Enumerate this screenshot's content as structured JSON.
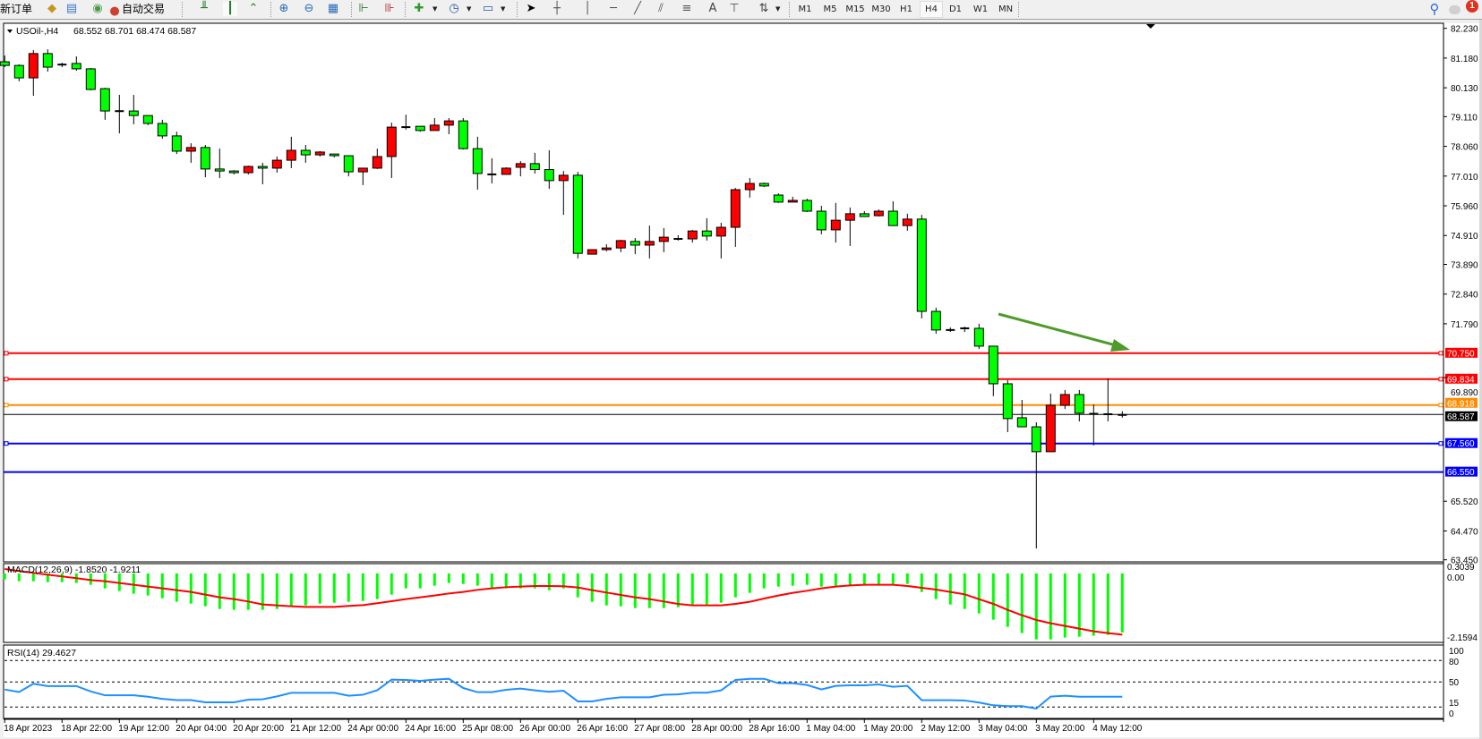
{
  "toolbar": {
    "new_order_label": "新订单",
    "auto_trading_label": "自动交易",
    "timeframes": [
      "M1",
      "M5",
      "M15",
      "M30",
      "H1",
      "H4",
      "D1",
      "W1",
      "MN"
    ],
    "active_timeframe": "H4",
    "text_tool_label": "A",
    "notification_count": "1",
    "icons": [
      "new-order-icon",
      "market-watch-icon",
      "navigator-icon",
      "signals-icon",
      "auto-trading-icon",
      "bar-chart-icon",
      "candlestick-icon",
      "line-chart-icon",
      "zoom-in-icon",
      "zoom-out-icon",
      "tile-windows-icon",
      "auto-scroll-icon",
      "chart-shift-icon",
      "indicators-icon",
      "periods-icon",
      "templates-icon",
      "cursor-icon",
      "crosshair-icon",
      "vertical-line-icon",
      "horizontal-line-icon",
      "trendline-icon",
      "equidistant-channel-icon",
      "fibonacci-icon",
      "text-icon",
      "text-label-icon",
      "arrows-icon",
      "search-icon",
      "notifications-icon"
    ]
  },
  "chart_header": {
    "symbol_timeframe": "USOil-,H4",
    "ohlc": "68.552 68.701 68.474 68.587"
  },
  "chart_data": [
    {
      "type": "candlestick",
      "symbol": "USOil-",
      "timeframe": "H4",
      "bullish_color": "#ff0000",
      "bearish_color": "#00ff00",
      "ylim": [
        63.45,
        82.23
      ],
      "y_ticks": [
        "82.230",
        "81.180",
        "80.130",
        "79.110",
        "78.060",
        "77.010",
        "75.960",
        "74.910",
        "73.890",
        "72.840",
        "71.790",
        "69.890",
        "65.520",
        "64.470",
        "63.450"
      ],
      "x_tick_labels": [
        "18 Apr 2023",
        "18 Apr 22:00",
        "19 Apr 12:00",
        "20 Apr 04:00",
        "20 Apr 20:00",
        "21 Apr 12:00",
        "24 Apr 00:00",
        "24 Apr 16:00",
        "25 Apr 08:00",
        "26 Apr 00:00",
        "26 Apr 16:00",
        "27 Apr 08:00",
        "28 Apr 00:00",
        "28 Apr 16:00",
        "1 May 04:00",
        "1 May 20:00",
        "2 May 12:00",
        "3 May 04:00",
        "3 May 20:00",
        "4 May 12:00"
      ],
      "ohlc_columns": [
        "open",
        "high",
        "low",
        "close"
      ],
      "candles": [
        [
          81.05,
          81.27,
          80.86,
          80.92
        ],
        [
          80.92,
          80.96,
          80.36,
          80.48
        ],
        [
          80.48,
          81.46,
          79.85,
          81.34
        ],
        [
          81.34,
          81.49,
          80.7,
          80.86
        ],
        [
          80.96,
          81.02,
          80.86,
          80.94
        ],
        [
          80.99,
          81.24,
          80.73,
          80.8
        ],
        [
          80.8,
          80.83,
          80.04,
          80.07
        ],
        [
          80.1,
          80.13,
          79.0,
          79.31
        ],
        [
          79.31,
          79.88,
          78.52,
          79.3
        ],
        [
          79.31,
          79.88,
          78.84,
          79.15
        ],
        [
          79.15,
          79.15,
          78.81,
          78.87
        ],
        [
          78.87,
          79.0,
          78.33,
          78.43
        ],
        [
          78.43,
          78.58,
          77.79,
          77.89
        ],
        [
          77.89,
          78.17,
          77.48,
          78.02
        ],
        [
          78.02,
          78.11,
          76.97,
          77.26
        ],
        [
          77.26,
          77.98,
          76.94,
          77.19
        ],
        [
          77.19,
          77.22,
          77.07,
          77.13
        ],
        [
          77.13,
          77.38,
          77.07,
          77.35
        ],
        [
          77.35,
          77.48,
          76.72,
          77.29
        ],
        [
          77.29,
          77.7,
          77.13,
          77.57
        ],
        [
          77.57,
          78.4,
          77.29,
          77.92
        ],
        [
          77.92,
          78.11,
          77.48,
          77.76
        ],
        [
          77.76,
          77.89,
          77.7,
          77.86
        ],
        [
          77.79,
          77.79,
          77.67,
          77.73
        ],
        [
          77.73,
          77.73,
          77.0,
          77.16
        ],
        [
          77.16,
          77.29,
          76.69,
          77.29
        ],
        [
          77.29,
          77.98,
          77.26,
          77.7
        ],
        [
          77.7,
          78.9,
          76.94,
          78.74
        ],
        [
          78.74,
          79.18,
          78.65,
          78.74
        ],
        [
          78.77,
          78.77,
          78.58,
          78.62
        ],
        [
          78.62,
          79.06,
          78.62,
          78.81
        ],
        [
          78.81,
          79.06,
          78.49,
          78.96
        ],
        [
          78.96,
          79.06,
          77.95,
          77.98
        ],
        [
          77.98,
          78.4,
          76.53,
          77.1
        ],
        [
          77.07,
          77.64,
          76.75,
          77.07
        ],
        [
          77.07,
          77.32,
          77.07,
          77.29
        ],
        [
          77.32,
          77.54,
          77.0,
          77.45
        ],
        [
          77.45,
          77.83,
          77.1,
          77.24
        ],
        [
          77.24,
          77.92,
          76.56,
          76.85
        ],
        [
          76.85,
          77.19,
          75.64,
          77.04
        ],
        [
          77.04,
          77.16,
          74.1,
          74.28
        ],
        [
          74.25,
          74.41,
          74.25,
          74.41
        ],
        [
          74.41,
          74.6,
          74.35,
          74.47
        ],
        [
          74.47,
          74.76,
          74.32,
          74.73
        ],
        [
          74.7,
          74.82,
          74.25,
          74.57
        ],
        [
          74.57,
          75.26,
          74.1,
          74.7
        ],
        [
          74.7,
          75.17,
          74.32,
          74.85
        ],
        [
          74.79,
          74.92,
          74.73,
          74.79
        ],
        [
          74.79,
          75.11,
          74.66,
          75.07
        ],
        [
          75.07,
          75.52,
          74.73,
          74.89
        ],
        [
          74.89,
          75.36,
          74.1,
          75.2
        ],
        [
          75.2,
          76.59,
          74.51,
          76.53
        ],
        [
          76.53,
          76.94,
          76.25,
          76.75
        ],
        [
          76.75,
          76.78,
          76.62,
          76.66
        ],
        [
          76.34,
          76.4,
          76.06,
          76.09
        ],
        [
          76.09,
          76.28,
          76.09,
          76.15
        ],
        [
          76.15,
          76.21,
          75.74,
          75.77
        ],
        [
          75.77,
          75.96,
          74.95,
          75.11
        ],
        [
          75.11,
          76.06,
          74.66,
          75.45
        ],
        [
          75.45,
          75.9,
          74.54,
          75.68
        ],
        [
          75.68,
          75.77,
          75.58,
          75.58
        ],
        [
          75.61,
          75.83,
          75.58,
          75.77
        ],
        [
          75.77,
          76.12,
          75.26,
          75.26
        ],
        [
          75.26,
          75.68,
          75.08,
          75.49
        ],
        [
          75.49,
          75.64,
          71.98,
          72.23
        ],
        [
          72.23,
          72.36,
          71.44,
          71.57
        ],
        [
          71.58,
          71.66,
          71.5,
          71.56
        ],
        [
          71.63,
          71.69,
          71.5,
          71.63
        ],
        [
          71.63,
          71.79,
          70.9,
          71.0
        ],
        [
          71.0,
          71.0,
          69.23,
          69.67
        ],
        [
          69.67,
          69.8,
          67.96,
          68.44
        ],
        [
          68.47,
          69.1,
          68.15,
          68.15
        ],
        [
          68.15,
          68.31,
          63.85,
          67.27
        ],
        [
          67.27,
          69.32,
          67.27,
          68.91
        ],
        [
          68.91,
          69.45,
          68.78,
          69.29
        ],
        [
          69.29,
          69.45,
          68.34,
          68.63
        ],
        [
          68.62,
          68.94,
          67.49,
          68.6
        ],
        [
          68.6,
          69.86,
          68.34,
          68.59
        ],
        [
          68.552,
          68.701,
          68.474,
          68.587
        ]
      ],
      "current_price": {
        "label": "68.587",
        "value": 68.587,
        "color": "#000000"
      },
      "levels": [
        {
          "label": "70.750",
          "value": 70.75,
          "color": "#ff0000",
          "marker": true
        },
        {
          "label": "69.834",
          "value": 69.834,
          "color": "#ff0000",
          "marker": true
        },
        {
          "label": "68.918",
          "value": 68.918,
          "color": "#ff8c00",
          "marker": true
        },
        {
          "label": "67.560",
          "value": 67.56,
          "color": "#0000ff",
          "marker": true
        },
        {
          "label": "66.550",
          "value": 66.55,
          "color": "#0000ff",
          "marker": false
        }
      ],
      "annotation_arrow": {
        "color": "#4e9a2a",
        "direction": "down-right"
      }
    },
    {
      "type": "bar+line",
      "title": "MACD(12,26,9) -1.8520 -1.9211",
      "ylim": [
        -2.1594,
        0.3039
      ],
      "y_ticks": [
        "0.3039",
        "0.00",
        "-2.1594"
      ],
      "histogram_color": "#00ff00",
      "signal_color": "#ff0000",
      "histogram": [
        -0.213,
        -0.268,
        -0.268,
        -0.295,
        -0.295,
        -0.323,
        -0.378,
        -0.489,
        -0.572,
        -0.655,
        -0.71,
        -0.794,
        -0.904,
        -0.96,
        -1.043,
        -1.126,
        -1.153,
        -1.153,
        -1.153,
        -1.126,
        -1.043,
        -1.015,
        -0.96,
        -0.932,
        -0.904,
        -0.877,
        -0.821,
        -0.683,
        -0.489,
        -0.489,
        -0.406,
        -0.323,
        -0.351,
        -0.406,
        -0.489,
        -0.489,
        -0.489,
        -0.489,
        -0.545,
        -0.489,
        -0.766,
        -0.904,
        -1.015,
        -1.043,
        -1.098,
        -1.098,
        -1.098,
        -1.07,
        -0.988,
        -0.988,
        -0.932,
        -0.766,
        -0.627,
        -0.489,
        -0.434,
        -0.406,
        -0.378,
        -0.434,
        -0.406,
        -0.406,
        -0.378,
        -0.351,
        -0.351,
        -0.351,
        -0.6,
        -0.821,
        -0.988,
        -1.126,
        -1.264,
        -1.458,
        -1.679,
        -1.873,
        -2.067,
        -2.067,
        -2.012,
        -1.984,
        -1.956,
        -1.928,
        -1.852
      ],
      "signal": [
        0.111,
        0.046,
        -0.009,
        -0.065,
        -0.12,
        -0.175,
        -0.231,
        -0.268,
        -0.323,
        -0.378,
        -0.434,
        -0.489,
        -0.544,
        -0.6,
        -0.683,
        -0.766,
        -0.821,
        -0.895,
        -0.987,
        -1.015,
        -1.042,
        -1.061,
        -1.061,
        -1.061,
        -1.033,
        -1.006,
        -0.95,
        -0.886,
        -0.821,
        -0.766,
        -0.71,
        -0.646,
        -0.6,
        -0.535,
        -0.489,
        -0.452,
        -0.434,
        -0.415,
        -0.415,
        -0.424,
        -0.461,
        -0.544,
        -0.618,
        -0.692,
        -0.766,
        -0.821,
        -0.895,
        -0.969,
        -1.015,
        -1.015,
        -1.015,
        -0.969,
        -0.904,
        -0.803,
        -0.71,
        -0.627,
        -0.563,
        -0.489,
        -0.434,
        -0.397,
        -0.378,
        -0.378,
        -0.378,
        -0.415,
        -0.47,
        -0.526,
        -0.6,
        -0.673,
        -0.821,
        -0.969,
        -1.153,
        -1.319,
        -1.467,
        -1.568,
        -1.651,
        -1.734,
        -1.817,
        -1.873,
        -1.921
      ]
    },
    {
      "type": "line",
      "title": "RSI(14) 29.4627",
      "ylim": [
        0,
        100
      ],
      "y_ticks": [
        "100",
        "80",
        "50",
        "15",
        "0"
      ],
      "levels": [
        80,
        50,
        15
      ],
      "line_color": "#1e90ff",
      "values": [
        39.5,
        36,
        47.6,
        44.3,
        44.3,
        44.3,
        36.9,
        31.4,
        31.4,
        31.4,
        29.4,
        26.5,
        24.7,
        24.7,
        21.6,
        21.6,
        21.6,
        25.4,
        25.8,
        29.9,
        34.9,
        34.9,
        34.9,
        34.9,
        30.9,
        32.2,
        38.6,
        53.3,
        52.9,
        51.6,
        53.3,
        54.5,
        41.6,
        35.8,
        35.8,
        39.1,
        40.8,
        38.3,
        36.3,
        37.8,
        22.9,
        22.9,
        26.5,
        28.6,
        28.6,
        28.6,
        32.2,
        32.7,
        35.1,
        35.1,
        38.3,
        52.9,
        54.5,
        54.5,
        48.3,
        48.3,
        45.8,
        39.6,
        44.6,
        45.4,
        45.4,
        46.6,
        43.3,
        44.6,
        24.6,
        24.6,
        24.6,
        24.2,
        21.3,
        17.5,
        16.3,
        16.3,
        12.9,
        29.6,
        30.9,
        29.5,
        29.5,
        29.5,
        29.46
      ]
    }
  ]
}
